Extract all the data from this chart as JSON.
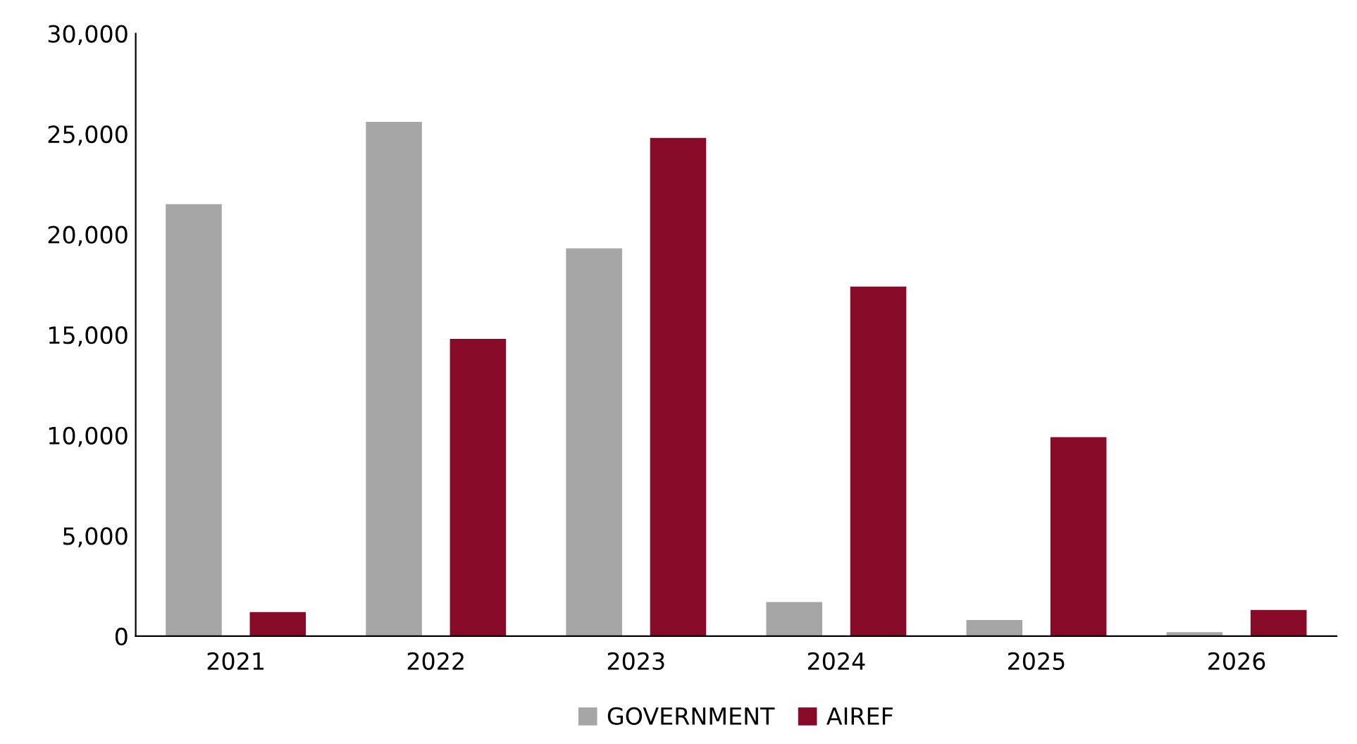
{
  "chart_data": {
    "type": "bar",
    "categories": [
      "2021",
      "2022",
      "2023",
      "2024",
      "2025",
      "2026"
    ],
    "series": [
      {
        "name": "GOVERNMENT",
        "color": "#a6a6a6",
        "values": [
          21500,
          25600,
          19300,
          1700,
          800,
          200
        ]
      },
      {
        "name": "AIREF",
        "color": "#870a28",
        "values": [
          1200,
          14800,
          24800,
          17400,
          9900,
          1300
        ]
      }
    ],
    "ylim": [
      0,
      30000
    ],
    "yticks": [
      {
        "value": 0,
        "label": "0"
      },
      {
        "value": 5000,
        "label": "5,000"
      },
      {
        "value": 10000,
        "label": "10,000"
      },
      {
        "value": 15000,
        "label": "15,000"
      },
      {
        "value": 20000,
        "label": "20,000"
      },
      {
        "value": 25000,
        "label": "25,000"
      },
      {
        "value": 30000,
        "label": "30,000"
      }
    ],
    "grid": false,
    "legend": "bottom"
  }
}
